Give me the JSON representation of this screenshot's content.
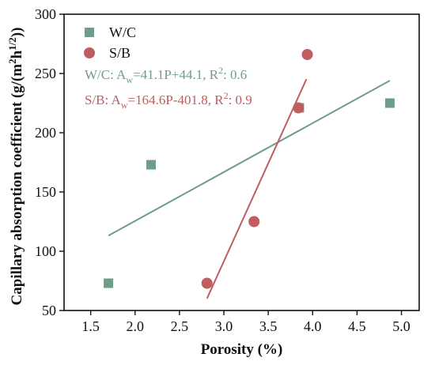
{
  "chart_data": {
    "type": "scatter",
    "xlabel": "Porosity (%)",
    "ylabel_main": "Capillary absorption coefficient (g/(m",
    "ylabel_sup1": "2",
    "ylabel_mid": "h",
    "ylabel_sup2": "1/2",
    "ylabel_end": "))",
    "xlim": [
      1.2,
      5.2
    ],
    "ylim": [
      50,
      300
    ],
    "xticks": [
      "1.5",
      "2.0",
      "2.5",
      "3.0",
      "3.5",
      "4.0",
      "4.5",
      "5.0"
    ],
    "yticks": [
      "50",
      "100",
      "150",
      "200",
      "250",
      "300"
    ],
    "xtick_values": [
      1.5,
      2.0,
      2.5,
      3.0,
      3.5,
      4.0,
      4.5,
      5.0
    ],
    "ytick_values": [
      50,
      100,
      150,
      200,
      250,
      300
    ],
    "grid": false,
    "legend_placement": "top-left",
    "series": [
      {
        "name": "W/C",
        "marker": "square",
        "color": "#6e9e8a",
        "x": [
          1.7,
          2.18,
          3.85,
          4.87
        ],
        "y": [
          73,
          173,
          221,
          225
        ],
        "fit": {
          "x": [
            1.7,
            4.87
          ],
          "eq_prefix": "W/C: A",
          "eq_sub": "w",
          "eq_mid": "=41.1P+44.1, R",
          "eq_sup": "2",
          "eq_end": ": 0.6"
        }
      },
      {
        "name": "S/B",
        "marker": "circle",
        "color": "#bf5d60",
        "x": [
          2.81,
          3.34,
          3.84,
          3.94
        ],
        "y": [
          73,
          125,
          221,
          266
        ],
        "fit": {
          "x": [
            2.81,
            3.93
          ],
          "eq_prefix": "S/B: A",
          "eq_sub": "w",
          "eq_mid": "=164.6P-401.8, R",
          "eq_sup": "2",
          "eq_end": ": 0.9"
        }
      }
    ]
  }
}
